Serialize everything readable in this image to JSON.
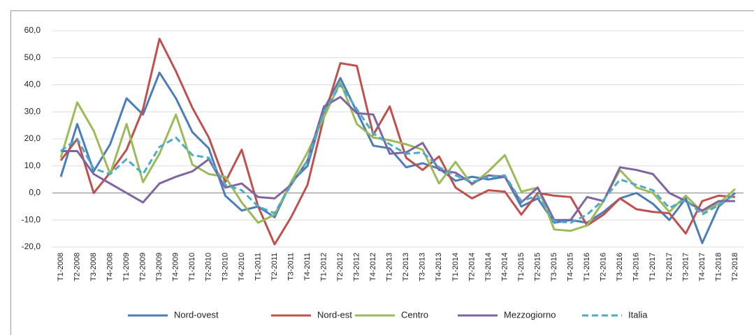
{
  "chart_data": {
    "type": "line",
    "categories": [
      "T1-2008",
      "T2-2008",
      "T3-2008",
      "T4-2008",
      "T1-2009",
      "T2-2009",
      "T3-2009",
      "T4-2009",
      "T1-2010",
      "T2-2010",
      "T3-2010",
      "T4-2010",
      "T1-2011",
      "T2-2011",
      "T3-2011",
      "T4-2011",
      "T1-2012",
      "T2-2012",
      "T3-2012",
      "T4-2012",
      "T1-2013",
      "T2-2013",
      "T3-2013",
      "T4-2013",
      "T1-2014",
      "T2-2014",
      "T3-2014",
      "T4-2014",
      "T1-2015",
      "T2-2015",
      "T3-2015",
      "T4-2015",
      "T1-2016",
      "T2-2016",
      "T3-2016",
      "T4-2016",
      "T1-2017",
      "T2-2017",
      "T3-2017",
      "T4-2017",
      "T1-2018",
      "T2-2018"
    ],
    "series": [
      {
        "name": "Nord-ovest",
        "color": "#4a7ebb",
        "dashed": false,
        "values": [
          6,
          25.5,
          8,
          18,
          35,
          29,
          44.5,
          35,
          22.5,
          16.5,
          -1,
          -6.5,
          -5,
          -9,
          4,
          10,
          31,
          42.5,
          30,
          17.5,
          16.5,
          9.5,
          11,
          9,
          4.5,
          6,
          5,
          6,
          -5,
          -2,
          -11,
          -10,
          -11,
          -7,
          -2,
          0,
          -4,
          -10,
          -2,
          -18.5,
          -5,
          0
        ]
      },
      {
        "name": "Nord-est",
        "color": "#c0504d",
        "dashed": false,
        "values": [
          12,
          20,
          0,
          7.5,
          16,
          31,
          57,
          45,
          31.5,
          20.5,
          4,
          16,
          -5,
          -19,
          -9,
          3,
          28,
          48,
          47,
          21.5,
          32,
          13,
          8.5,
          13.5,
          2,
          -2,
          1,
          0.5,
          -8,
          0,
          -1,
          -1.5,
          -12,
          -8,
          -2,
          -6,
          -7,
          -7.5,
          -15,
          -3,
          -1,
          -1.5
        ]
      },
      {
        "name": "Centro",
        "color": "#9bbb59",
        "dashed": false,
        "values": [
          13,
          33.5,
          23,
          7,
          25.5,
          4,
          14.5,
          29,
          10.5,
          7,
          6,
          -3.5,
          -11,
          -8,
          4,
          15,
          28,
          41,
          25.5,
          20.5,
          19.5,
          18,
          16,
          3.5,
          11.5,
          3,
          8,
          14,
          0.5,
          2,
          -13.5,
          -14,
          -12,
          -3,
          8.5,
          2,
          0,
          -7,
          -1,
          -7,
          -4,
          1.5
        ]
      },
      {
        "name": "Mezzogiorno",
        "color": "#8064a2",
        "dashed": false,
        "values": [
          15.5,
          15.5,
          7,
          3.5,
          0,
          -3.5,
          3.5,
          6,
          8,
          12.5,
          2,
          3.5,
          -1.5,
          -2,
          3,
          12,
          32,
          35.5,
          29.5,
          29,
          14.5,
          15,
          18.5,
          8.5,
          7.5,
          3.5,
          6.5,
          6,
          -3.5,
          2,
          -10,
          -10,
          -1.5,
          -3,
          9.5,
          8.5,
          7,
          0,
          -3,
          -6.5,
          -3,
          -3
        ]
      },
      {
        "name": "Italia",
        "color": "#4bacc6",
        "dashed": true,
        "values": [
          15.5,
          20,
          9,
          7,
          12.5,
          7,
          17,
          20.5,
          14,
          13,
          3,
          1,
          -5,
          -7.5,
          3,
          12,
          30,
          40,
          31,
          22,
          18,
          14.5,
          15,
          9.5,
          6.5,
          4,
          6,
          6.5,
          -3,
          -1,
          -10.5,
          -11,
          -8,
          -2.5,
          5,
          3,
          1,
          -5.5,
          -2.5,
          -8,
          -4.5,
          -0.5
        ]
      }
    ],
    "ylim": [
      -20,
      60
    ],
    "yticks": [
      {
        "value": -20,
        "label": "-20,0"
      },
      {
        "value": -10,
        "label": "-10,0"
      },
      {
        "value": 0,
        "label": "0,0"
      },
      {
        "value": 10,
        "label": "10,0"
      },
      {
        "value": 20,
        "label": "20,0"
      },
      {
        "value": 30,
        "label": "30,0"
      },
      {
        "value": 40,
        "label": "40,0"
      },
      {
        "value": 50,
        "label": "50,0"
      },
      {
        "value": 60,
        "label": "60,0"
      }
    ],
    "grid": true,
    "legend": "bottom"
  }
}
